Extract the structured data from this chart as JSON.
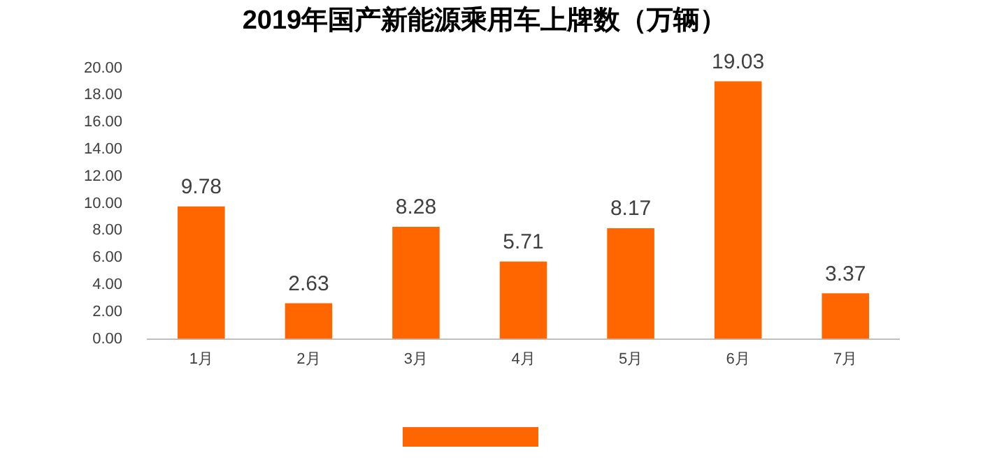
{
  "chart_data": {
    "type": "bar",
    "title": "2019年国产新能源乘用车上牌数（万辆）",
    "categories": [
      "1月",
      "2月",
      "3月",
      "4月",
      "5月",
      "6月",
      "7月"
    ],
    "values": [
      9.78,
      2.63,
      8.28,
      5.71,
      8.17,
      19.03,
      3.37
    ],
    "color": "#ff6600",
    "ylim": [
      0,
      20
    ],
    "yticks": [
      {
        "value": 0,
        "label": "0.00"
      },
      {
        "value": 2,
        "label": "2.00"
      },
      {
        "value": 4,
        "label": "4.00"
      },
      {
        "value": 6,
        "label": "6.00"
      },
      {
        "value": 8,
        "label": "8.00"
      },
      {
        "value": 10,
        "label": "10.00"
      },
      {
        "value": 12,
        "label": "12.00"
      },
      {
        "value": 14,
        "label": "14.00"
      },
      {
        "value": 16,
        "label": "16.00"
      },
      {
        "value": 18,
        "label": "18.00"
      },
      {
        "value": 20,
        "label": "20.00"
      }
    ],
    "data_labels": true,
    "grid": false
  }
}
